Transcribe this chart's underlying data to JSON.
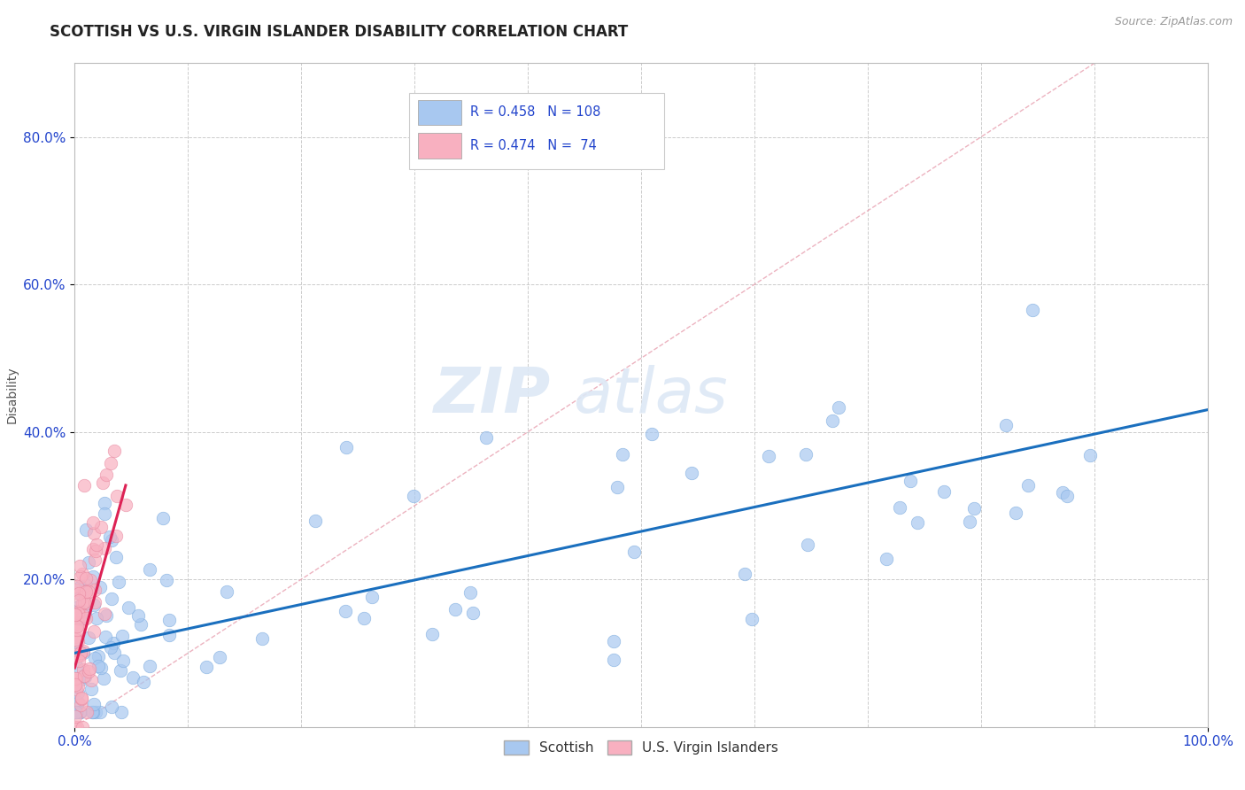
{
  "title": "SCOTTISH VS U.S. VIRGIN ISLANDER DISABILITY CORRELATION CHART",
  "source": "Source: ZipAtlas.com",
  "ylabel": "Disability",
  "xlim": [
    0.0,
    1.0
  ],
  "ylim": [
    0.0,
    0.9
  ],
  "scottish_color": "#a8c8f0",
  "scottish_edge_color": "#7aaade",
  "usvi_color": "#f8b0c0",
  "usvi_edge_color": "#e888a0",
  "regression_scottish_color": "#1a6fbe",
  "regression_usvi_color": "#dd2255",
  "diagonal_color": "#e8a0b0",
  "watermark_color": "#e8eef5",
  "background_color": "#ffffff",
  "grid_color": "#cccccc",
  "title_color": "#222222",
  "legend_text_color": "#2244cc",
  "tick_color": "#2244cc",
  "N_scottish": 108,
  "N_usvi": 74,
  "R_scottish": 0.458,
  "R_usvi": 0.474,
  "scottish_slope": 0.33,
  "scottish_intercept": 0.1,
  "usvi_slope": 5.5,
  "usvi_intercept": 0.08
}
